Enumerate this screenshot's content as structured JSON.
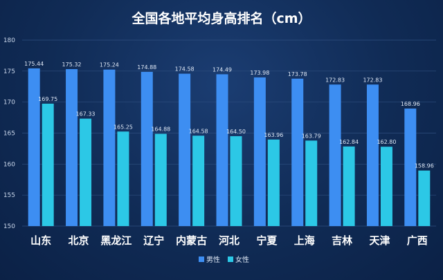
{
  "chart_data": {
    "type": "bar",
    "title": "全国各地平均身高排名（cm）",
    "xlabel": "",
    "ylabel": "",
    "categories": [
      "山东",
      "北京",
      "黑龙江",
      "辽宁",
      "内蒙古",
      "河北",
      "宁夏",
      "上海",
      "吉林",
      "天津",
      "广西"
    ],
    "series": [
      {
        "name": "男性",
        "color": "#3d8ef2",
        "values": [
          175.44,
          175.32,
          175.24,
          174.88,
          174.58,
          174.49,
          173.98,
          173.78,
          172.83,
          172.83,
          168.96
        ]
      },
      {
        "name": "女性",
        "color": "#2cc8e6",
        "values": [
          169.75,
          167.33,
          165.25,
          164.88,
          164.58,
          164.5,
          163.96,
          163.79,
          162.84,
          162.8,
          158.96
        ]
      }
    ],
    "ylim": [
      150,
      180
    ],
    "yticks": [
      150,
      155,
      160,
      165,
      170,
      175,
      180
    ],
    "value_format_decimals": 2,
    "grid": true,
    "legend_position": "bottom"
  }
}
